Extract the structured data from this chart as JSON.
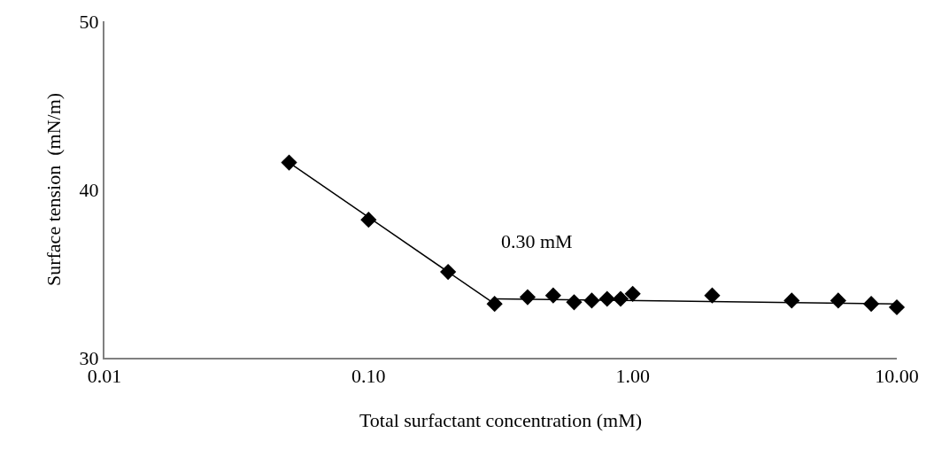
{
  "chart_data": {
    "type": "scatter",
    "xlabel": "Total surfactant concentration (mM)",
    "ylabel": "Surface tension  (mN/m)",
    "log": "x",
    "xlim": [
      0.01,
      10
    ],
    "xticks": [
      {
        "value": 0.01,
        "label": "0.01"
      },
      {
        "value": 0.1,
        "label": "0.10"
      },
      {
        "value": 1,
        "label": "1.00"
      },
      {
        "value": 10,
        "label": "10.00"
      }
    ],
    "ylim": [
      30,
      50
    ],
    "yticks": [
      30,
      40,
      50
    ],
    "series": [
      {
        "marker": "diamond",
        "color": "#000000",
        "x": [
          0.05,
          0.1,
          0.2,
          0.3,
          0.4,
          0.5,
          0.6,
          0.7,
          0.8,
          0.9,
          1.0,
          2.0,
          4.0,
          6.0,
          8.0,
          10.0
        ],
        "values": [
          41.6,
          38.2,
          35.1,
          33.2,
          33.6,
          33.7,
          33.3,
          33.4,
          33.5,
          33.5,
          33.8,
          33.7,
          33.4,
          33.4,
          33.2,
          33.0
        ]
      },
      {
        "type": "line",
        "marker": "none",
        "color": "#000000",
        "x": [
          0.05,
          0.3
        ],
        "values": [
          41.6,
          33.2
        ]
      },
      {
        "type": "line",
        "marker": "none",
        "color": "#000000",
        "x": [
          0.3,
          10
        ],
        "values": [
          33.5,
          33.2
        ]
      }
    ],
    "annotations": [
      "0.30 mM"
    ]
  }
}
